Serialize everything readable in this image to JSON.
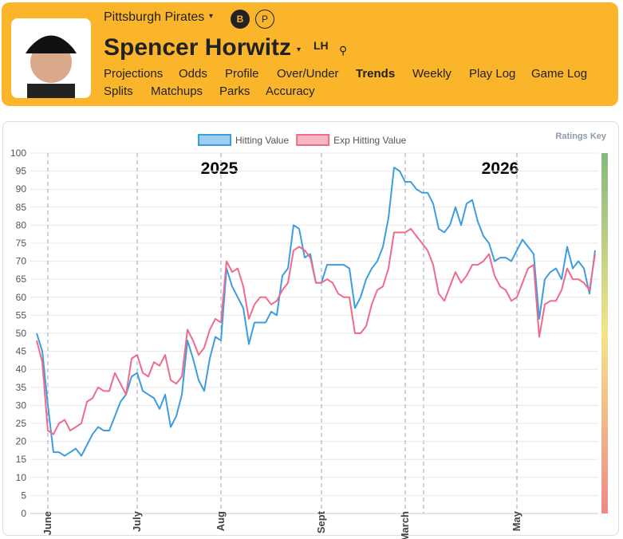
{
  "header": {
    "team": "Pittsburgh Pirates",
    "name": "Spencer Horwitz",
    "hand": "LH",
    "badges": [
      "B",
      "P"
    ],
    "nav": [
      "Projections",
      "Odds",
      "Profile",
      "Over/Under",
      "Trends",
      "Weekly",
      "Play Log",
      "Game Log",
      "Splits",
      "Matchups",
      "Parks",
      "Accuracy"
    ]
  },
  "ratings_key": "Ratings Key",
  "chart_data": {
    "type": "line",
    "annotations": [
      "2025",
      "2026"
    ],
    "categories": [
      null,
      null,
      "June",
      null,
      null,
      null,
      null,
      null,
      null,
      null,
      null,
      null,
      null,
      null,
      null,
      null,
      null,
      null,
      "July",
      null,
      null,
      null,
      null,
      null,
      null,
      null,
      null,
      null,
      null,
      null,
      null,
      null,
      null,
      "Aug",
      null,
      null,
      null,
      null,
      null,
      null,
      null,
      null,
      null,
      null,
      null,
      null,
      null,
      null,
      null,
      null,
      null,
      "Sept",
      null,
      null,
      null,
      null,
      null,
      null,
      null,
      null,
      null,
      null,
      null,
      null,
      null,
      null,
      "March",
      null,
      null,
      null,
      null,
      null,
      null,
      null,
      null,
      null,
      null,
      null,
      null,
      null,
      null,
      null,
      null,
      null,
      null,
      null,
      "May",
      null,
      null,
      null,
      null,
      null,
      null,
      null,
      null,
      null,
      null,
      null,
      null,
      null,
      null
    ],
    "series": [
      {
        "name": "Hitting Value",
        "color": "#3d9ddf",
        "values": [
          50,
          45,
          30,
          17,
          17,
          16,
          17,
          18,
          16,
          19,
          22,
          24,
          23,
          23,
          27,
          31,
          33,
          38,
          39,
          34,
          33,
          32,
          29,
          33,
          24,
          27,
          33,
          48,
          43,
          37,
          34,
          43,
          49,
          48,
          68,
          63,
          60,
          57,
          47,
          53,
          53,
          53,
          56,
          55,
          66,
          68,
          80,
          79,
          71,
          72,
          64,
          64,
          69,
          69,
          69,
          69,
          68,
          57,
          60,
          65,
          68,
          70,
          74,
          82,
          96,
          95,
          92,
          92,
          90,
          89,
          89,
          86,
          79,
          78,
          80,
          85,
          80,
          86,
          87,
          81,
          77,
          75,
          70,
          71,
          71,
          70,
          73,
          76,
          74,
          72,
          54,
          65,
          67,
          68,
          65,
          74,
          68,
          70,
          68,
          61,
          73
        ]
      },
      {
        "name": "Exp Hitting Value",
        "color": "#ef6b8b",
        "values": [
          48,
          42,
          23,
          22,
          25,
          26,
          23,
          24,
          25,
          31,
          32,
          35,
          34,
          34,
          39,
          36,
          33,
          43,
          44,
          39,
          38,
          42,
          41,
          44,
          37,
          36,
          38,
          51,
          48,
          44,
          46,
          51,
          54,
          53,
          70,
          67,
          68,
          63,
          54,
          58,
          60,
          60,
          58,
          59,
          62,
          64,
          73,
          74,
          73,
          71,
          64,
          64,
          65,
          64,
          61,
          60,
          60,
          50,
          50,
          52,
          58,
          62,
          63,
          68,
          78,
          78,
          78,
          79,
          77,
          75,
          73,
          69,
          61,
          59,
          63,
          67,
          64,
          66,
          69,
          69,
          70,
          72,
          66,
          63,
          62,
          59,
          60,
          64,
          68,
          69,
          49,
          58,
          59,
          59,
          62,
          68,
          65,
          65,
          64,
          62,
          72
        ]
      }
    ],
    "ylim": [
      0,
      100
    ],
    "yticks": [
      0,
      5,
      10,
      15,
      20,
      25,
      30,
      35,
      40,
      45,
      50,
      55,
      60,
      65,
      70,
      75,
      80,
      85,
      90,
      95,
      100
    ],
    "grid": true
  }
}
